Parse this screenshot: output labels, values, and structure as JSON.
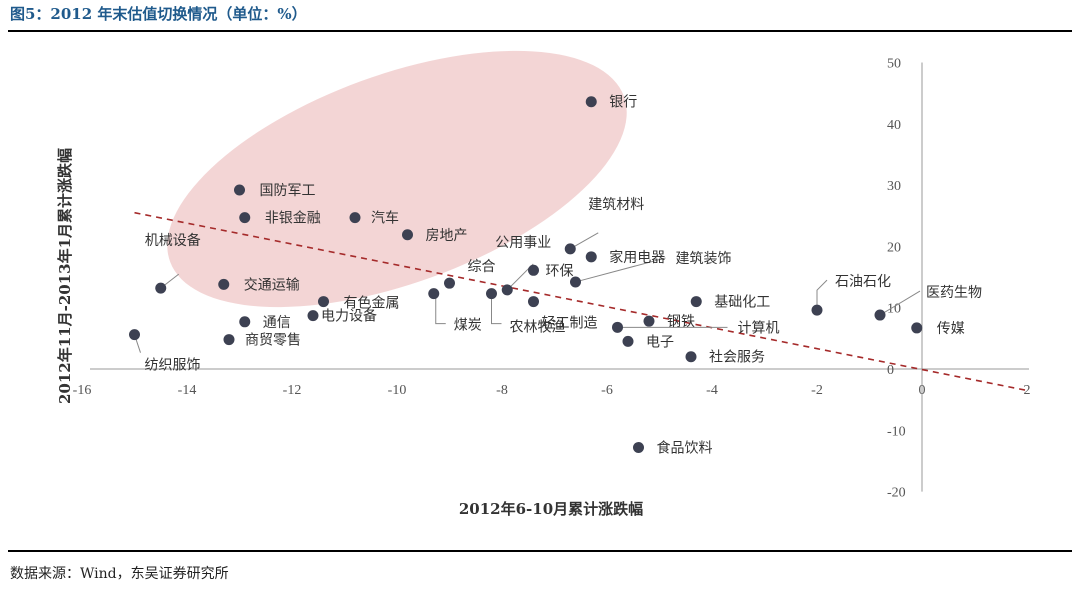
{
  "figure": {
    "title": "图5：2012 年末估值切换情况（单位：%）",
    "source": "数据来源：Wind，东吴证券研究所"
  },
  "chart_data": {
    "type": "scatter",
    "xlabel": "2012年6-10月累计涨跌幅",
    "ylabel": "2012年11月-2013年1月累计涨跌幅",
    "xlim": [
      -16,
      2
    ],
    "ylim": [
      -20,
      50
    ],
    "xticks": [
      -16,
      -14,
      -12,
      -10,
      -8,
      -6,
      -4,
      -2,
      0,
      2
    ],
    "yticks": [
      -20,
      -10,
      0,
      10,
      20,
      30,
      40,
      50
    ],
    "points": [
      {
        "label": "银行",
        "x": -6.3,
        "y": 43.6
      },
      {
        "label": "国防军工",
        "x": -13.0,
        "y": 29.2
      },
      {
        "label": "非银金融",
        "x": -12.9,
        "y": 24.7
      },
      {
        "label": "汽车",
        "x": -10.8,
        "y": 24.7
      },
      {
        "label": "房地产",
        "x": -9.8,
        "y": 21.9
      },
      {
        "label": "公用事业",
        "x": -7.9,
        "y": 12.9
      },
      {
        "label": "建筑材料",
        "x": -6.7,
        "y": 19.6
      },
      {
        "label": "家用电器",
        "x": -6.3,
        "y": 18.3
      },
      {
        "label": "综合",
        "x": -9.0,
        "y": 14.0
      },
      {
        "label": "环保",
        "x": -7.4,
        "y": 16.1
      },
      {
        "label": "建筑装饰",
        "x": -6.6,
        "y": 14.2
      },
      {
        "label": "机械设备",
        "x": -14.5,
        "y": 13.2
      },
      {
        "label": "交通运输",
        "x": -13.3,
        "y": 13.8
      },
      {
        "label": "有色金属",
        "x": -11.4,
        "y": 11.0
      },
      {
        "label": "电力设备",
        "x": -11.6,
        "y": 8.7
      },
      {
        "label": "通信",
        "x": -12.9,
        "y": 7.7
      },
      {
        "label": "商贸零售",
        "x": -13.2,
        "y": 4.8
      },
      {
        "label": "纺织服饰",
        "x": -15.0,
        "y": 5.6
      },
      {
        "label": "煤炭",
        "x": -9.3,
        "y": 12.3
      },
      {
        "label": "农林牧渔",
        "x": -8.2,
        "y": 12.3
      },
      {
        "label": "轻工制造",
        "x": -7.4,
        "y": 11.0
      },
      {
        "label": "钢铁",
        "x": -5.2,
        "y": 7.8
      },
      {
        "label": "计算机",
        "x": -5.8,
        "y": 6.8
      },
      {
        "label": "电子",
        "x": -5.6,
        "y": 4.5
      },
      {
        "label": "社会服务",
        "x": -4.4,
        "y": 2.0
      },
      {
        "label": "基础化工",
        "x": -4.3,
        "y": 11.0
      },
      {
        "label": "石油石化",
        "x": -2.0,
        "y": 9.6
      },
      {
        "label": "医药生物",
        "x": -0.8,
        "y": 8.8
      },
      {
        "label": "传媒",
        "x": -0.1,
        "y": 6.7
      },
      {
        "label": "食品饮料",
        "x": -5.4,
        "y": -12.8
      }
    ],
    "trendline": {
      "style": "dashed",
      "color": "#a52a2a",
      "x1": -15.0,
      "y1": 25.5,
      "x2": 2.0,
      "y2": -3.5
    },
    "highlight_ellipse": {
      "color": "#f2d0d0",
      "center_x": -10.0,
      "center_y": 31.0,
      "radius_x": 4.6,
      "radius_y": 17.0,
      "rotation_deg": -20
    },
    "colors": {
      "point": "#3d4152",
      "axis": "#999999",
      "leader": "#888888"
    }
  }
}
